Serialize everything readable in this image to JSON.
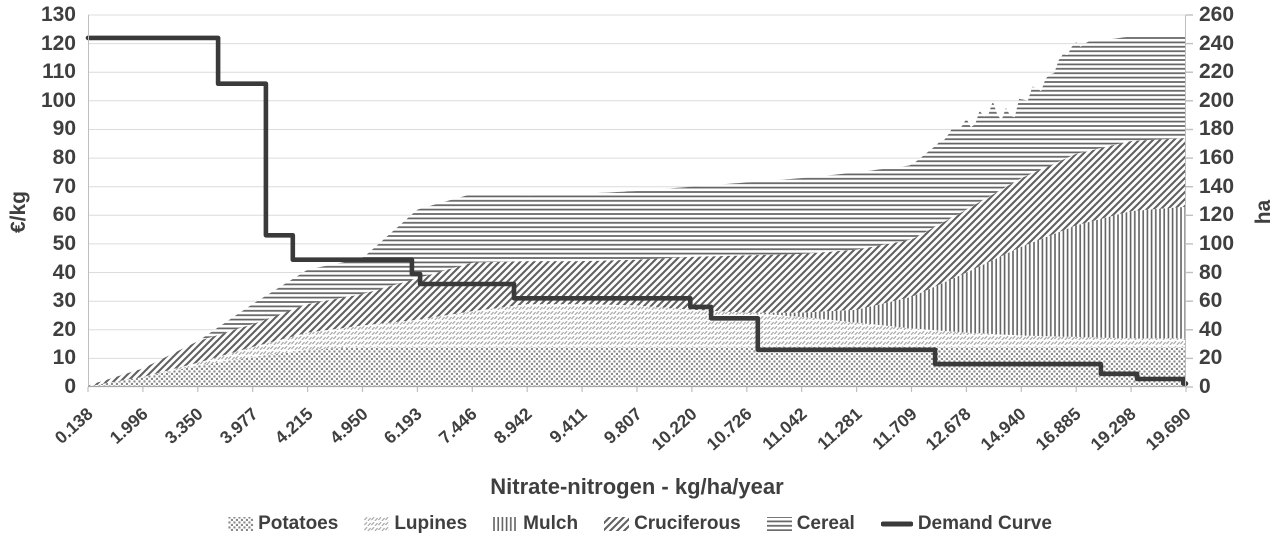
{
  "chart_data": {
    "type": "area",
    "stacked": true,
    "title": "",
    "xlabel": "Nitrate-nitrogen - kg/ha/year",
    "grid": "horizontal",
    "legend_position": "bottom",
    "left_axis": {
      "title": "€/kg",
      "min": 0,
      "max": 130,
      "tick_step": 10,
      "ticks": [
        "0",
        "10",
        "20",
        "30",
        "40",
        "50",
        "60",
        "70",
        "80",
        "90",
        "100",
        "110",
        "120",
        "130"
      ]
    },
    "right_axis": {
      "title": "ha",
      "min": 0,
      "max": 260,
      "tick_step": 20,
      "ticks": [
        "0",
        "20",
        "40",
        "60",
        "80",
        "100",
        "120",
        "140",
        "160",
        "180",
        "200",
        "220",
        "240",
        "260"
      ]
    },
    "categories": [
      "0.138",
      "1.996",
      "3.350",
      "3.977",
      "4.215",
      "4.950",
      "6.193",
      "7.446",
      "8.942",
      "9.411",
      "9.807",
      "10.220",
      "10.726",
      "11.042",
      "11.281",
      "11.709",
      "12.678",
      "14.940",
      "16.885",
      "19.298",
      "19.690"
    ],
    "series": [
      {
        "name": "Potatoes",
        "pattern": "dots",
        "axis": "right",
        "unit": "ha",
        "values": [
          0.5,
          7,
          15,
          21,
          26,
          28,
          28,
          28,
          28,
          28,
          28,
          28,
          28,
          28,
          28,
          28,
          28,
          28,
          28,
          28,
          28
        ]
      },
      {
        "name": "Lupines",
        "pattern": "crosshatch",
        "axis": "right",
        "unit": "ha",
        "values": [
          0,
          0,
          2,
          7,
          12,
          15,
          19,
          25,
          30,
          30,
          29,
          26,
          24,
          21,
          17,
          13,
          10,
          8,
          7,
          6,
          6
        ]
      },
      {
        "name": "Mulch",
        "pattern": "vertical-lines",
        "axis": "right",
        "unit": "ha",
        "values": [
          0,
          0,
          0,
          0,
          0,
          0,
          0,
          0,
          0,
          0,
          0,
          0,
          0,
          3,
          9,
          22,
          42,
          62,
          78,
          89,
          92
        ]
      },
      {
        "name": "Cruciferous",
        "pattern": "diagonal-lines",
        "axis": "right",
        "unit": "ha",
        "values": [
          0.5,
          6,
          15,
          16,
          20,
          22,
          29,
          34,
          30,
          30,
          32,
          37,
          40,
          41,
          42,
          40,
          44,
          48,
          50,
          49,
          48
        ]
      },
      {
        "name": "Cereal",
        "pattern": "horizontal-lines",
        "axis": "right",
        "unit": "ha",
        "values": [
          0,
          0,
          0,
          14,
          24,
          25,
          48,
          48,
          46,
          47,
          48,
          49,
          51,
          53,
          54,
          52,
          62,
          50,
          77,
          73,
          72
        ]
      }
    ],
    "demand_curve": {
      "name": "Demand Curve",
      "axis": "left",
      "unit": "€/kg",
      "x_unit": "category-index (0-20)",
      "steps": [
        {
          "x": 0,
          "y": 122
        },
        {
          "x": 2.37,
          "y": 106
        },
        {
          "x": 3.24,
          "y": 53
        },
        {
          "x": 3.73,
          "y": 44.5
        },
        {
          "x": 5.9,
          "y": 39.5
        },
        {
          "x": 6.05,
          "y": 36
        },
        {
          "x": 7.76,
          "y": 31
        },
        {
          "x": 10.97,
          "y": 28
        },
        {
          "x": 11.35,
          "y": 24
        },
        {
          "x": 12.2,
          "y": 13
        },
        {
          "x": 15.43,
          "y": 8
        },
        {
          "x": 18.45,
          "y": 4.6
        },
        {
          "x": 19.11,
          "y": 2.8
        },
        {
          "x": 19.95,
          "y": 1.2
        }
      ]
    }
  },
  "legend": {
    "items": [
      {
        "label": "Potatoes",
        "swatch": "dots"
      },
      {
        "label": "Lupines",
        "swatch": "crosshatch"
      },
      {
        "label": "Mulch",
        "swatch": "vertical-lines"
      },
      {
        "label": "Cruciferous",
        "swatch": "diagonal-lines"
      },
      {
        "label": "Cereal",
        "swatch": "horizontal-lines"
      },
      {
        "label": "Demand Curve",
        "swatch": "line"
      }
    ]
  },
  "colors": {
    "background": "#ffffff",
    "text": "#3f3f3f",
    "grid": "#dcdcdc",
    "axis": "#bfbfbf",
    "axis_bottom": "#a6a6a6",
    "demand": "#3a3a3a",
    "pattern_dark": "#616161",
    "pattern_mid": "#8a8a8a",
    "pattern_light": "#adadad"
  }
}
